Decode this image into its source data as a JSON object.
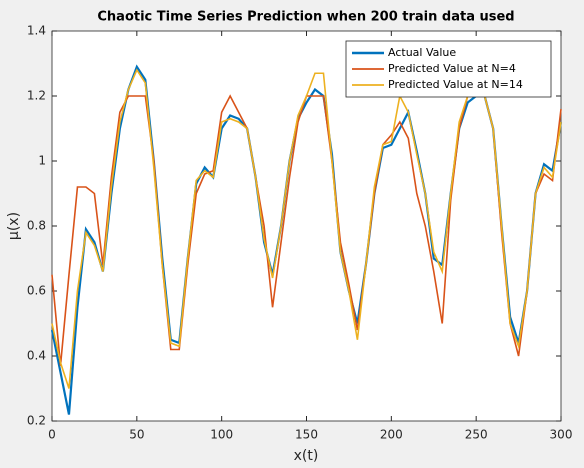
{
  "chart_data": {
    "type": "line",
    "title": "Chaotic Time Series Prediction when 200 train data used",
    "xlabel": "x(t)",
    "ylabel": "μ(x)",
    "x": [
      0,
      5,
      10,
      15,
      20,
      25,
      30,
      35,
      40,
      45,
      50,
      55,
      60,
      65,
      70,
      75,
      80,
      85,
      90,
      95,
      100,
      105,
      110,
      115,
      120,
      125,
      130,
      135,
      140,
      145,
      150,
      155,
      160,
      165,
      170,
      175,
      180,
      185,
      190,
      195,
      200,
      205,
      210,
      215,
      220,
      225,
      230,
      235,
      240,
      245,
      250,
      255,
      260,
      265,
      270,
      275,
      280,
      285,
      290,
      295,
      300
    ],
    "series": [
      {
        "name": "Actual Value",
        "color": "#0072bd",
        "values": [
          0.48,
          0.35,
          0.22,
          0.55,
          0.79,
          0.75,
          0.66,
          0.9,
          1.1,
          1.22,
          1.29,
          1.25,
          1.0,
          0.7,
          0.45,
          0.44,
          0.7,
          0.93,
          0.98,
          0.95,
          1.1,
          1.14,
          1.13,
          1.1,
          0.95,
          0.75,
          0.65,
          0.8,
          1.0,
          1.13,
          1.18,
          1.22,
          1.2,
          1.02,
          0.72,
          0.6,
          0.5,
          0.68,
          0.9,
          1.04,
          1.05,
          1.1,
          1.15,
          1.03,
          0.9,
          0.7,
          0.68,
          0.9,
          1.1,
          1.18,
          1.2,
          1.2,
          1.1,
          0.8,
          0.52,
          0.44,
          0.6,
          0.9,
          0.99,
          0.97,
          1.12
        ]
      },
      {
        "name": "Predicted Value at N=4",
        "color": "#d95319",
        "values": [
          0.65,
          0.37,
          0.65,
          0.92,
          0.92,
          0.9,
          0.68,
          0.95,
          1.15,
          1.2,
          1.2,
          1.2,
          1.0,
          0.68,
          0.42,
          0.42,
          0.68,
          0.9,
          0.96,
          0.97,
          1.15,
          1.2,
          1.15,
          1.1,
          0.95,
          0.8,
          0.55,
          0.75,
          0.95,
          1.12,
          1.2,
          1.2,
          1.2,
          1.0,
          0.75,
          0.62,
          0.48,
          0.68,
          0.9,
          1.05,
          1.08,
          1.12,
          1.07,
          0.9,
          0.8,
          0.66,
          0.5,
          0.88,
          1.1,
          1.2,
          1.2,
          1.2,
          1.1,
          0.78,
          0.5,
          0.4,
          0.6,
          0.9,
          0.96,
          0.94,
          1.16
        ]
      },
      {
        "name": "Predicted Value at N=14",
        "color": "#edb120",
        "values": [
          0.5,
          0.38,
          0.3,
          0.6,
          0.78,
          0.74,
          0.66,
          0.92,
          1.12,
          1.22,
          1.28,
          1.24,
          0.98,
          0.68,
          0.44,
          0.43,
          0.7,
          0.94,
          0.97,
          0.95,
          1.12,
          1.13,
          1.12,
          1.1,
          0.95,
          0.76,
          0.64,
          0.8,
          1.0,
          1.14,
          1.2,
          1.27,
          1.27,
          1.0,
          0.72,
          0.6,
          0.45,
          0.68,
          0.92,
          1.05,
          1.06,
          1.2,
          1.15,
          1.02,
          0.9,
          0.72,
          0.66,
          0.9,
          1.12,
          1.2,
          1.21,
          1.2,
          1.1,
          0.8,
          0.5,
          0.43,
          0.6,
          0.9,
          0.98,
          0.95,
          1.12
        ]
      }
    ],
    "xlim": [
      0,
      300
    ],
    "ylim": [
      0.2,
      1.4
    ],
    "xticks": [
      0,
      50,
      100,
      150,
      200,
      250,
      300
    ],
    "yticks": [
      0.2,
      0.4,
      0.6,
      0.8,
      1,
      1.2,
      1.4
    ],
    "legend": "upper right"
  }
}
